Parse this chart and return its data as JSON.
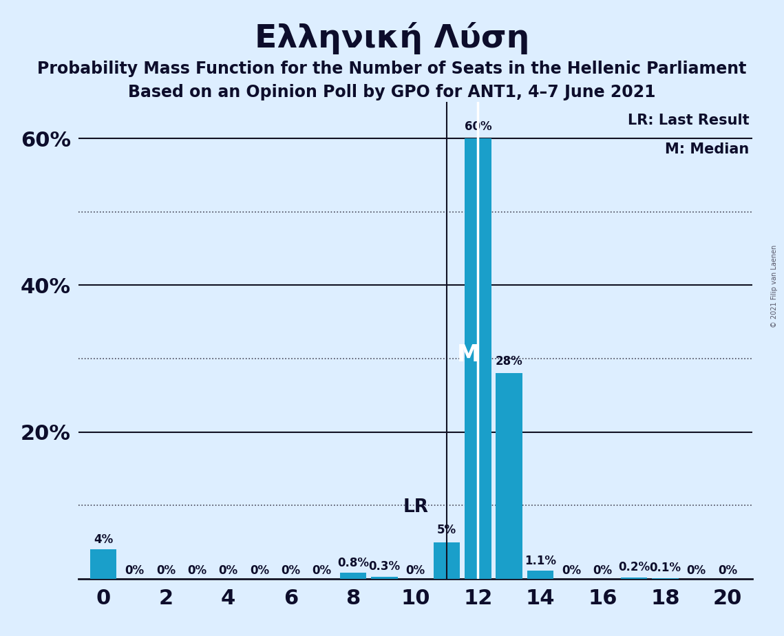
{
  "title": "Ελληνική Λύση",
  "subtitle1": "Probability Mass Function for the Number of Seats in the Hellenic Parliament",
  "subtitle2": "Based on an Opinion Poll by GPO for ANT1, 4–7 June 2021",
  "copyright": "© 2021 Filip van Laenen",
  "seats": [
    0,
    1,
    2,
    3,
    4,
    5,
    6,
    7,
    8,
    9,
    10,
    11,
    12,
    13,
    14,
    15,
    16,
    17,
    18,
    19,
    20
  ],
  "probabilities": [
    4.0,
    0.0,
    0.0,
    0.0,
    0.0,
    0.0,
    0.0,
    0.0,
    0.8,
    0.3,
    0.0,
    5.0,
    60.0,
    28.0,
    1.1,
    0.0,
    0.0,
    0.2,
    0.1,
    0.0,
    0.0
  ],
  "bar_labels": [
    "4%",
    "0%",
    "0%",
    "0%",
    "0%",
    "0%",
    "0%",
    "0%",
    "0.8%",
    "0.3%",
    "0%",
    "5%",
    "60%",
    "28%",
    "1.1%",
    "0%",
    "0%",
    "0.2%",
    "0.1%",
    "0%",
    "0%"
  ],
  "bar_color": "#1a9fca",
  "background_color": "#ddeeff",
  "last_result_seat": 11,
  "median_seat": 12,
  "ylim": [
    0,
    65
  ],
  "solid_gridlines": [
    20,
    40,
    60
  ],
  "dotted_gridlines": [
    10,
    30,
    50
  ],
  "ytick_positions": [
    20,
    40,
    60
  ],
  "ytick_labels": [
    "20%",
    "40%",
    "60%"
  ],
  "xticks": [
    0,
    2,
    4,
    6,
    8,
    10,
    12,
    14,
    16,
    18,
    20
  ],
  "legend_lr": "LR: Last Result",
  "legend_m": "M: Median",
  "title_fontsize": 34,
  "subtitle_fontsize": 17,
  "tick_fontsize": 22,
  "bar_label_fontsize": 12,
  "figsize": [
    11.39,
    9.24
  ]
}
